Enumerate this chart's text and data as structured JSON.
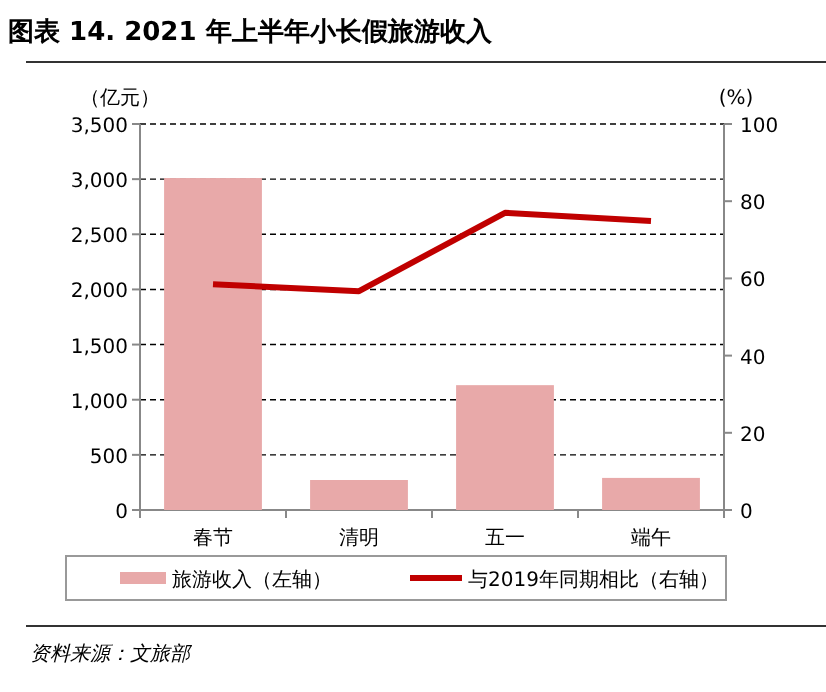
{
  "chart_data": {
    "type": "bar",
    "title": "图表 14. 2021 年上半年小长假旅游收入",
    "ylabel": "（亿元）",
    "y2label": "(%)",
    "categories": [
      "春节",
      "清明",
      "五一",
      "端午"
    ],
    "series": [
      {
        "name": "旅游收入（左轴）",
        "color": "#e8a9a9",
        "values": [
          3010,
          272,
          1132,
          291
        ]
      },
      {
        "name": "与2019年同期相比（右轴）",
        "type": "line",
        "axis": "y2",
        "color": "#c00000",
        "values": [
          58.5,
          56.7,
          77.0,
          74.9
        ]
      }
    ],
    "ylim": [
      0,
      3500
    ],
    "yticks": [
      {
        "value": 0,
        "label": "0"
      },
      {
        "value": 500,
        "label": "500"
      },
      {
        "value": 1000,
        "label": "1,000"
      },
      {
        "value": 1500,
        "label": "1,500"
      },
      {
        "value": 2000,
        "label": "2,000"
      },
      {
        "value": 2500,
        "label": "2,500"
      },
      {
        "value": 3000,
        "label": "3,000"
      },
      {
        "value": 3500,
        "label": "3,500"
      }
    ],
    "y2lim": [
      0,
      100
    ],
    "y2ticks": [
      0,
      20,
      40,
      60,
      80,
      100
    ],
    "grid": "y",
    "legend": "bottom",
    "annotations": [
      "资料来源：文旅部"
    ]
  }
}
